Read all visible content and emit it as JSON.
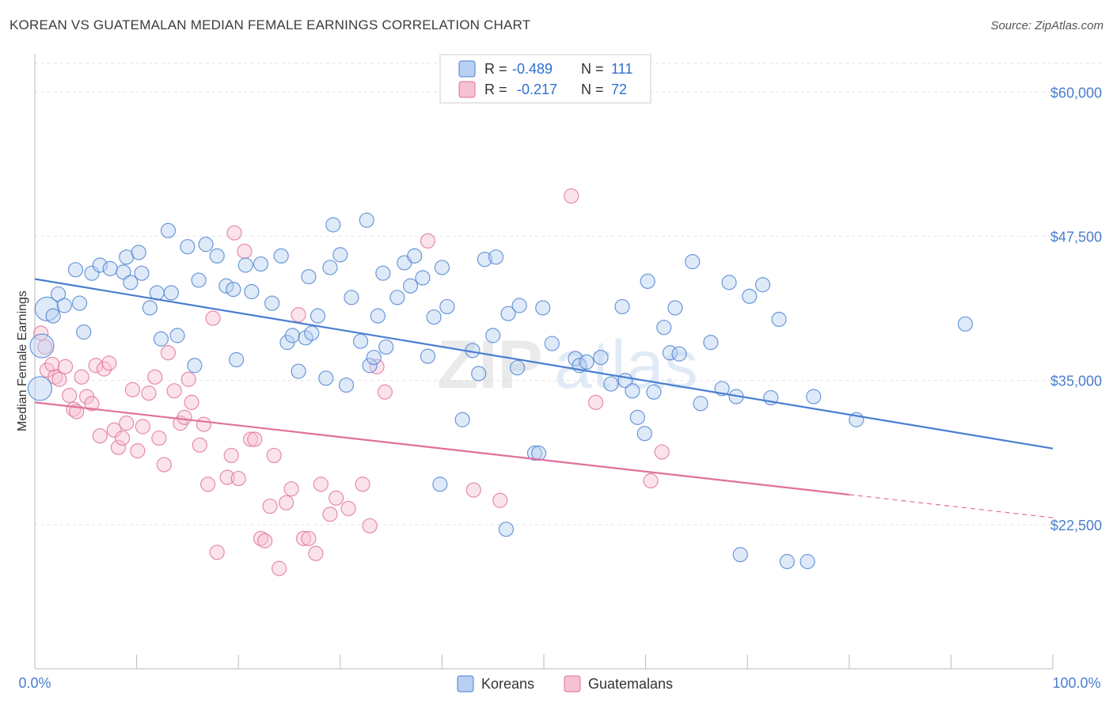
{
  "header": {
    "title": "KOREAN VS GUATEMALAN MEDIAN FEMALE EARNINGS CORRELATION CHART",
    "source": "Source: ZipAtlas.com"
  },
  "colors": {
    "korean": "#4a7fcf",
    "korean_fill": "#b9d0f2",
    "guatemalan": "#e0709a",
    "guatemalan_fill": "#f6c1d2",
    "axis_label": "#4a7fcf"
  },
  "legend": {
    "rows": [
      {
        "r_label": "R =",
        "r_value": "-0.489",
        "n_label": "N =",
        "n_value": "111"
      },
      {
        "r_label": "R =",
        "r_value": "-0.217",
        "n_label": "N =",
        "n_value": "72"
      }
    ],
    "bottom": [
      "Koreans",
      "Guatemalans"
    ]
  },
  "watermark": {
    "zip": "ZIP",
    "atlas": "atlas"
  },
  "chart_data": {
    "type": "scatter",
    "title": "KOREAN VS GUATEMALAN MEDIAN FEMALE EARNINGS CORRELATION CHART",
    "xlabel": "",
    "ylabel": "Median Female Earnings",
    "xlim": [
      0,
      100
    ],
    "ylim": [
      10000,
      62500
    ],
    "x_tick_labels": [
      "0.0%",
      "100.0%"
    ],
    "y_ticks": [
      22500,
      35000,
      47500,
      60000
    ],
    "y_tick_labels": [
      "$22,500",
      "$35,000",
      "$47,500",
      "$60,000"
    ],
    "grid": true,
    "series": [
      {
        "name": "Koreans",
        "r": -0.489,
        "n": 111,
        "trend": {
          "x0": 0,
          "y0": 43800,
          "x1": 100,
          "y1": 29100
        },
        "points": [
          [
            0.5,
            34300,
            "l"
          ],
          [
            0.7,
            38000,
            "l"
          ],
          [
            1.2,
            41200,
            "l"
          ],
          [
            1.8,
            40600
          ],
          [
            2.3,
            42500
          ],
          [
            2.9,
            41500
          ],
          [
            4.0,
            44600
          ],
          [
            4.4,
            41700
          ],
          [
            4.8,
            39200
          ],
          [
            5.6,
            44300
          ],
          [
            6.4,
            45000
          ],
          [
            7.4,
            44700
          ],
          [
            8.7,
            44400
          ],
          [
            9.0,
            45700
          ],
          [
            9.4,
            43500
          ],
          [
            10.2,
            46100
          ],
          [
            10.5,
            44300
          ],
          [
            11.3,
            41300
          ],
          [
            12.0,
            42600
          ],
          [
            12.4,
            38600
          ],
          [
            13.1,
            48000
          ],
          [
            13.4,
            42600
          ],
          [
            14.0,
            38900
          ],
          [
            15.0,
            46600
          ],
          [
            15.7,
            36300
          ],
          [
            16.1,
            43700
          ],
          [
            16.8,
            46800
          ],
          [
            17.9,
            45800
          ],
          [
            18.8,
            43200
          ],
          [
            19.5,
            42900
          ],
          [
            19.8,
            36800
          ],
          [
            20.7,
            45000
          ],
          [
            21.3,
            42700
          ],
          [
            22.2,
            45100
          ],
          [
            23.3,
            41700
          ],
          [
            24.2,
            45800
          ],
          [
            24.8,
            38300
          ],
          [
            25.3,
            38900
          ],
          [
            25.9,
            35800
          ],
          [
            26.6,
            38700
          ],
          [
            26.9,
            44000
          ],
          [
            27.2,
            39100
          ],
          [
            27.8,
            40600
          ],
          [
            28.6,
            35200
          ],
          [
            29.0,
            44800
          ],
          [
            29.3,
            48500
          ],
          [
            30.0,
            45900
          ],
          [
            30.6,
            34600
          ],
          [
            31.1,
            42200
          ],
          [
            32.0,
            38400
          ],
          [
            32.6,
            48900
          ],
          [
            32.9,
            36300
          ],
          [
            33.3,
            37000
          ],
          [
            33.7,
            40600
          ],
          [
            34.2,
            44300
          ],
          [
            34.5,
            37900
          ],
          [
            35.6,
            42200
          ],
          [
            36.3,
            45200
          ],
          [
            36.9,
            43200
          ],
          [
            37.3,
            45800
          ],
          [
            38.1,
            43900
          ],
          [
            38.6,
            37100
          ],
          [
            39.2,
            40500
          ],
          [
            40.0,
            44800
          ],
          [
            40.5,
            41400
          ],
          [
            42.0,
            31600
          ],
          [
            43.0,
            37600
          ],
          [
            43.6,
            35600
          ],
          [
            44.2,
            45500
          ],
          [
            45.0,
            38900
          ],
          [
            45.3,
            45700
          ],
          [
            46.5,
            40800
          ],
          [
            47.4,
            36100
          ],
          [
            47.6,
            41500
          ],
          [
            49.1,
            28700
          ],
          [
            49.5,
            28700
          ],
          [
            49.9,
            41300
          ],
          [
            50.8,
            38200
          ],
          [
            53.1,
            36900
          ],
          [
            53.5,
            36300
          ],
          [
            54.2,
            36600
          ],
          [
            55.6,
            37000
          ],
          [
            56.6,
            34700
          ],
          [
            57.7,
            41400
          ],
          [
            58.0,
            35000
          ],
          [
            59.2,
            31800
          ],
          [
            59.9,
            30400
          ],
          [
            60.2,
            43600
          ],
          [
            60.8,
            34000
          ],
          [
            61.8,
            39600
          ],
          [
            62.4,
            37400
          ],
          [
            62.9,
            41300
          ],
          [
            63.3,
            37300
          ],
          [
            64.6,
            45300
          ],
          [
            65.4,
            33000
          ],
          [
            66.4,
            38300
          ],
          [
            67.5,
            34300
          ],
          [
            68.2,
            43500
          ],
          [
            68.9,
            33600
          ],
          [
            70.2,
            42300
          ],
          [
            71.5,
            43300
          ],
          [
            72.3,
            33500
          ],
          [
            73.1,
            40300
          ],
          [
            76.5,
            33600
          ],
          [
            80.7,
            31600
          ],
          [
            91.4,
            39900
          ],
          [
            39.8,
            26000
          ],
          [
            46.3,
            22100
          ],
          [
            58.7,
            34100
          ],
          [
            69.3,
            19900
          ],
          [
            73.9,
            19300
          ],
          [
            75.9,
            19300
          ]
        ]
      },
      {
        "name": "Guatemalans",
        "r": -0.217,
        "n": 72,
        "trend": {
          "x0": 0,
          "y0": 33100,
          "x1": 80,
          "y1": 25100
        },
        "trend_dashed": {
          "x0": 80,
          "y0": 25100,
          "x1": 100,
          "y1": 23100
        },
        "points": [
          [
            0.6,
            39100
          ],
          [
            1.0,
            37900
          ],
          [
            1.2,
            35900
          ],
          [
            1.7,
            36400
          ],
          [
            2.0,
            35300
          ],
          [
            2.4,
            35100
          ],
          [
            3.0,
            36200
          ],
          [
            3.4,
            33700
          ],
          [
            3.8,
            32500
          ],
          [
            4.1,
            32300
          ],
          [
            4.6,
            35300
          ],
          [
            5.1,
            33600
          ],
          [
            5.6,
            33000
          ],
          [
            6.0,
            36300
          ],
          [
            6.4,
            30200
          ],
          [
            6.8,
            36000
          ],
          [
            7.3,
            36500
          ],
          [
            7.8,
            30700
          ],
          [
            8.2,
            29200
          ],
          [
            8.6,
            30000
          ],
          [
            9.0,
            31300
          ],
          [
            9.6,
            34200
          ],
          [
            10.1,
            28900
          ],
          [
            10.6,
            31000
          ],
          [
            11.2,
            33900
          ],
          [
            11.8,
            35300
          ],
          [
            12.2,
            30000
          ],
          [
            12.7,
            27700
          ],
          [
            13.1,
            37400
          ],
          [
            13.7,
            34100
          ],
          [
            14.3,
            31300
          ],
          [
            14.7,
            31800
          ],
          [
            15.1,
            35100
          ],
          [
            15.4,
            33100
          ],
          [
            16.2,
            29400
          ],
          [
            16.6,
            31200
          ],
          [
            17.0,
            26000
          ],
          [
            17.5,
            40400
          ],
          [
            17.9,
            20100
          ],
          [
            18.9,
            26600
          ],
          [
            19.3,
            28500
          ],
          [
            19.6,
            47800
          ],
          [
            20.0,
            26500
          ],
          [
            20.6,
            46200
          ],
          [
            21.2,
            29900
          ],
          [
            21.6,
            29900
          ],
          [
            22.2,
            21300
          ],
          [
            22.6,
            21100
          ],
          [
            23.1,
            24100
          ],
          [
            23.5,
            28500
          ],
          [
            24.0,
            18700
          ],
          [
            24.7,
            24400
          ],
          [
            25.2,
            25600
          ],
          [
            25.9,
            40700
          ],
          [
            26.4,
            21300
          ],
          [
            26.9,
            21300
          ],
          [
            27.6,
            20000
          ],
          [
            28.1,
            26000
          ],
          [
            29.0,
            23400
          ],
          [
            29.6,
            24800
          ],
          [
            30.8,
            23900
          ],
          [
            32.2,
            26000
          ],
          [
            32.9,
            22400
          ],
          [
            33.6,
            36200
          ],
          [
            34.4,
            34000
          ],
          [
            38.6,
            47100
          ],
          [
            43.1,
            25500
          ],
          [
            45.7,
            24600
          ],
          [
            52.7,
            51000
          ],
          [
            55.1,
            33100
          ],
          [
            60.5,
            26300
          ],
          [
            61.6,
            28800
          ]
        ]
      }
    ]
  }
}
